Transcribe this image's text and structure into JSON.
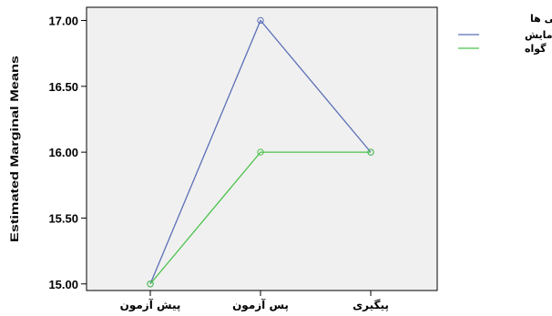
{
  "chart_data": {
    "type": "line",
    "ylabel": "Estimated Marginal Means",
    "xlabel": "",
    "categories": [
      "پیش آزمون",
      "پس آزمون",
      "پیگیری"
    ],
    "ylim": [
      14.95,
      17.1
    ],
    "yticks": [
      "15.00",
      "15.50",
      "16.00",
      "16.50",
      "17.00"
    ],
    "ytick_values": [
      15.0,
      15.5,
      16.0,
      16.5,
      17.0
    ],
    "grid": false,
    "legend": {
      "title": "آزمودنی ها",
      "placement": "top-right"
    },
    "series": [
      {
        "name": "آزمایش",
        "color": "#5b6fb8",
        "values": [
          15.0,
          17.0,
          16.0
        ]
      },
      {
        "name": "گواه",
        "color": "#4cc24c",
        "values": [
          15.0,
          16.0,
          16.0
        ]
      }
    ],
    "plot_background": "#f0f0f0"
  }
}
